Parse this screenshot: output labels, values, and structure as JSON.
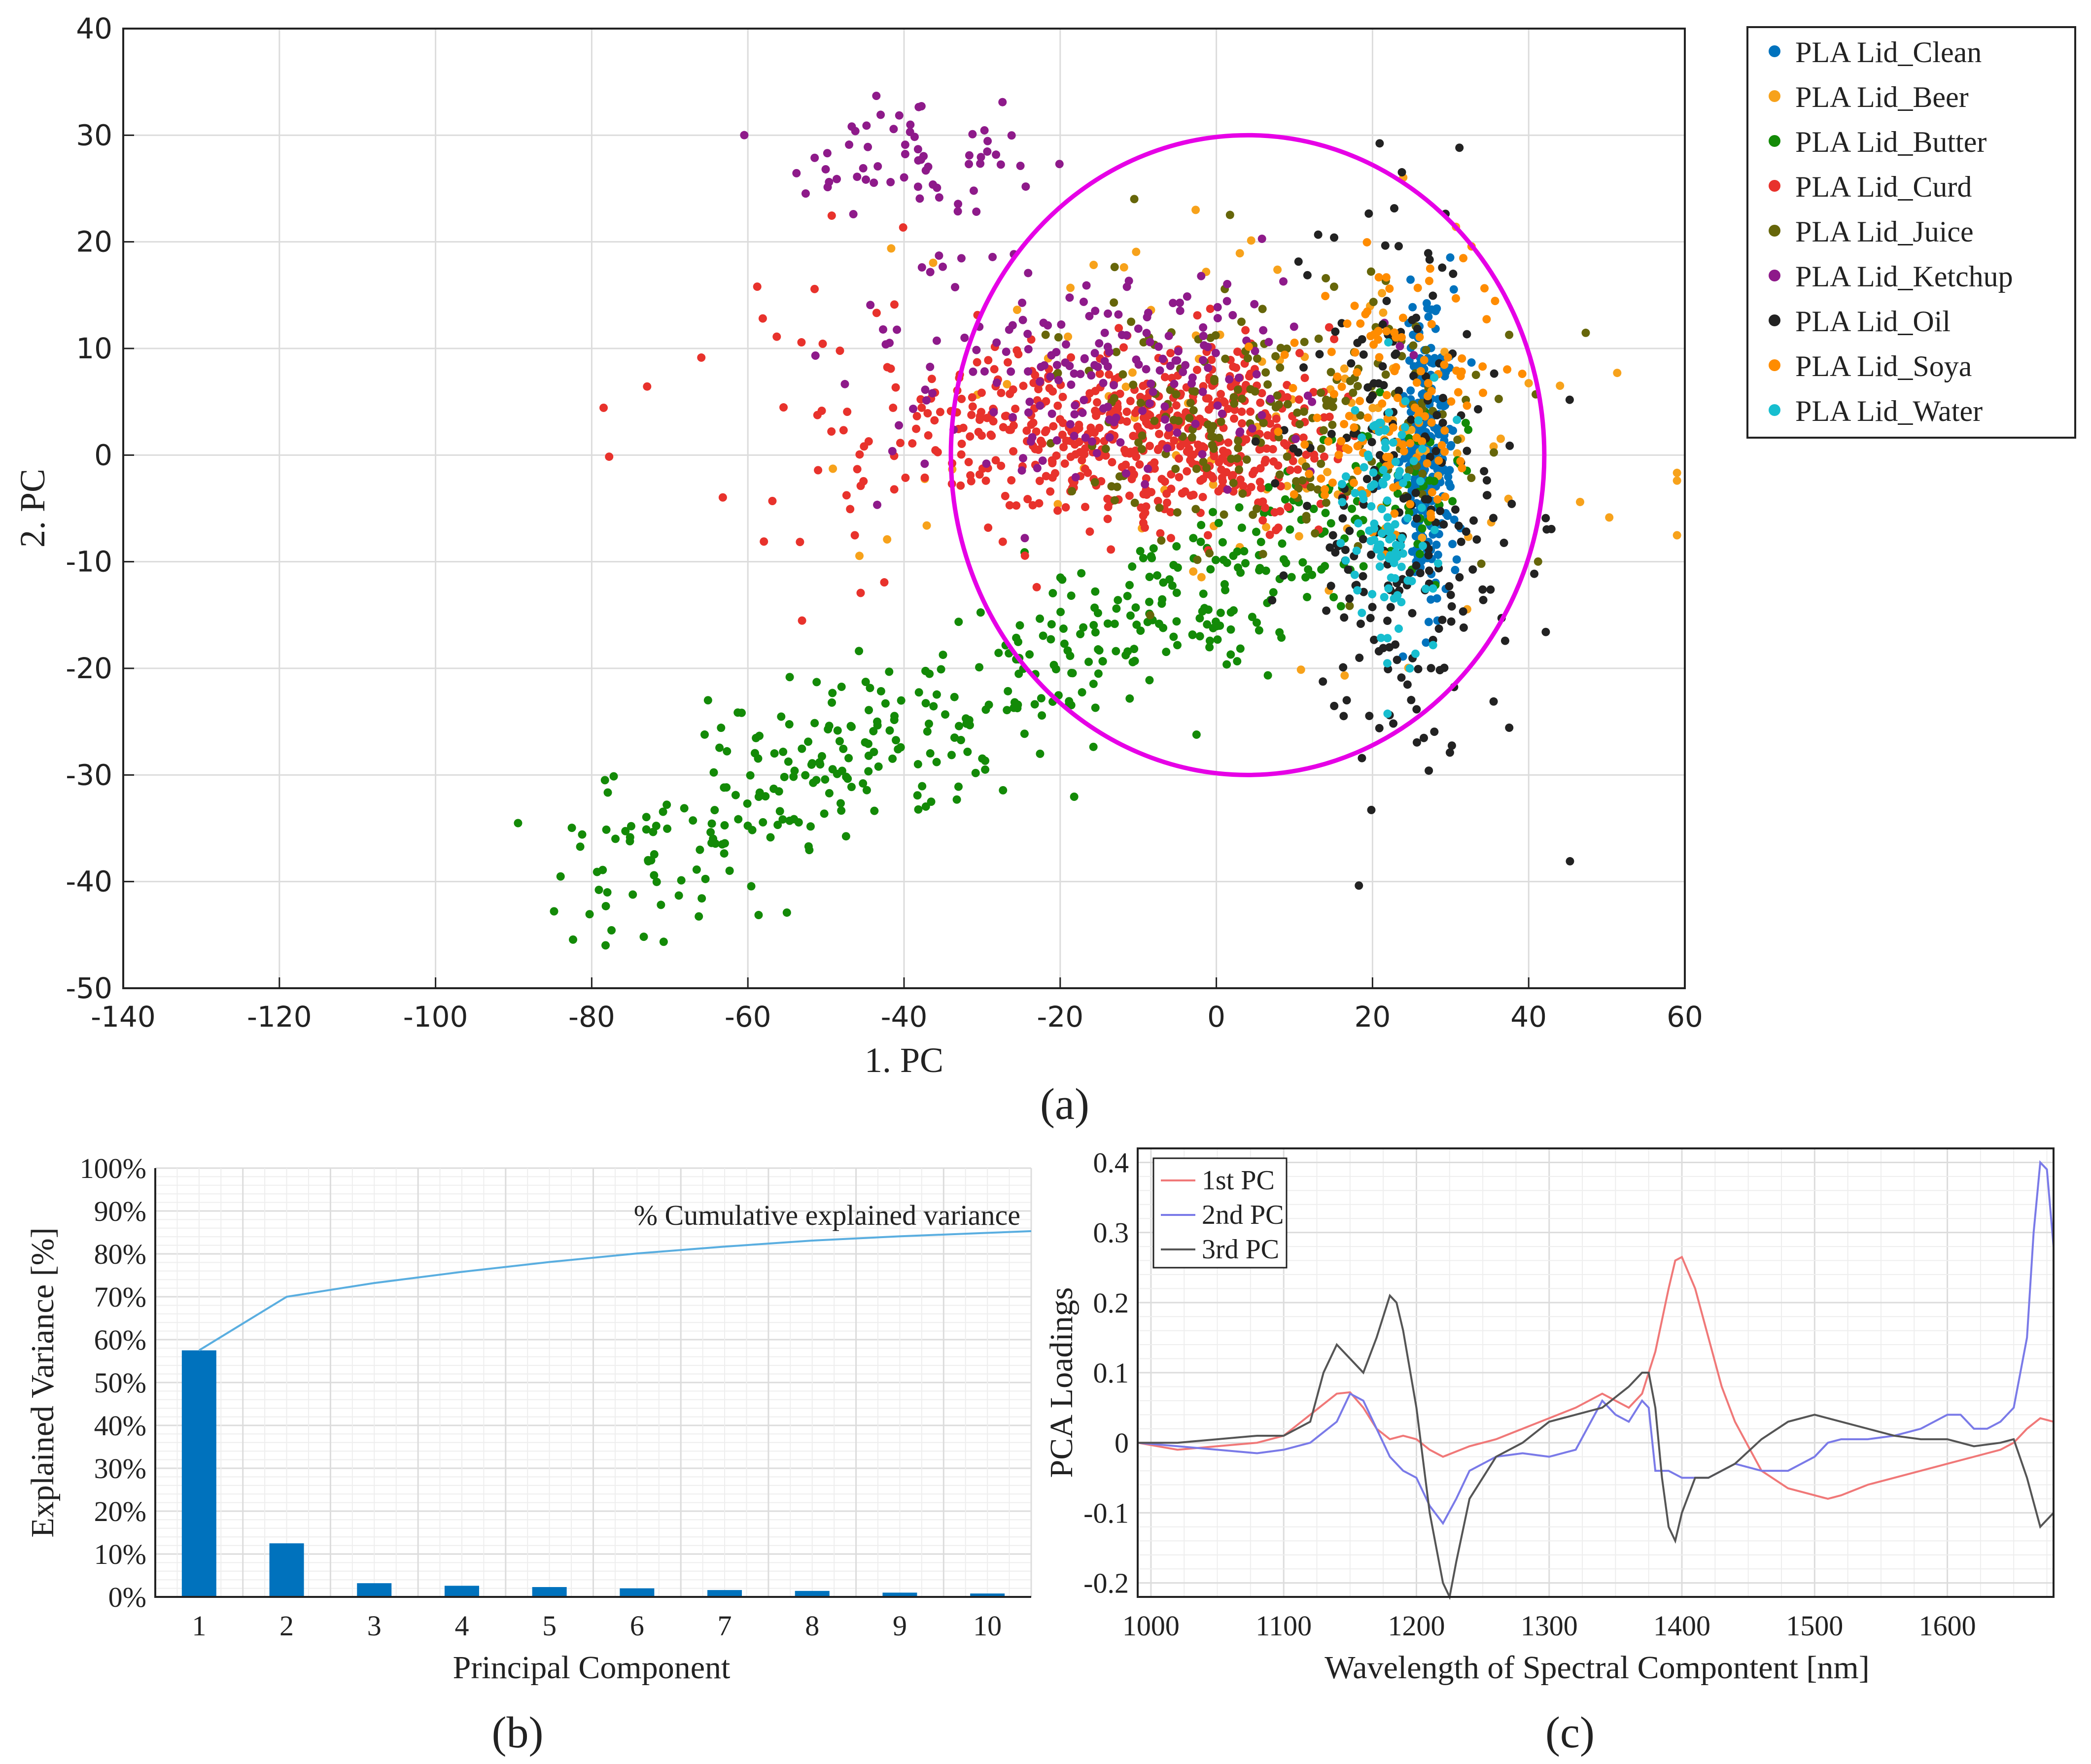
{
  "chart_data": [
    {
      "panel_label": "(a)",
      "type": "scatter",
      "title": "",
      "xlabel": "1. PC",
      "ylabel": "2. PC",
      "xlim": [
        -140,
        60
      ],
      "ylim": [
        -50,
        40
      ],
      "x_ticks": [
        -140,
        -120,
        -100,
        -80,
        -60,
        -40,
        -20,
        0,
        20,
        40,
        60
      ],
      "y_ticks": [
        -50,
        -40,
        -30,
        -20,
        -10,
        0,
        10,
        20,
        30,
        40
      ],
      "grid": true,
      "legend_position": "outside-top-right",
      "annotation_ellipse": {
        "center": [
          4,
          0
        ],
        "radius_x": 38,
        "radius_y": 30,
        "color": "#e600e6"
      },
      "series": [
        {
          "name": "PLA Lid_Clean",
          "color": "#0072bd",
          "cluster": {
            "x_mean": 27,
            "y_mean": 0,
            "x_sd": 1.6,
            "y_sd": 7,
            "count": 260
          }
        },
        {
          "name": "PLA Lid_Beer",
          "color": "#f7a21b",
          "cluster": {
            "x_mean": 5,
            "y_mean": 2,
            "x_sd": 22,
            "y_sd": 10,
            "count": 110
          }
        },
        {
          "name": "PLA Lid_Butter",
          "color": "#138a07",
          "cluster": {
            "x_mean": -5,
            "y_mean": -15,
            "x_sd": 25,
            "y_sd": 10,
            "count": 480
          }
        },
        {
          "name": "PLA Lid_Curd",
          "color": "#e8322c",
          "cluster": {
            "x_mean": -25,
            "y_mean": 2,
            "x_sd": 22,
            "y_sd": 5,
            "count": 620
          }
        },
        {
          "name": "PLA Lid_Juice",
          "color": "#66660a",
          "cluster": {
            "x_mean": 5,
            "y_mean": 4,
            "x_sd": 15,
            "y_sd": 6,
            "count": 220
          }
        },
        {
          "name": "PLA Lid_Ketchup",
          "color": "#8e1a8a",
          "cluster": {
            "x_mean": -15,
            "y_mean": 10,
            "x_sd": 15,
            "y_sd": 8,
            "count": 260
          }
        },
        {
          "name": "PLA Lid_Oil",
          "color": "#222222",
          "cluster": {
            "x_mean": 24,
            "y_mean": -5,
            "x_sd": 7,
            "y_sd": 14,
            "count": 240
          }
        },
        {
          "name": "PLA Lid_Soya",
          "color": "#ff8c00",
          "cluster": {
            "x_mean": 22,
            "y_mean": 5,
            "x_sd": 6,
            "y_sd": 6,
            "count": 140
          }
        },
        {
          "name": "PLA Lid_Water",
          "color": "#17becf",
          "cluster": {
            "x_mean": 22,
            "y_mean": -5,
            "x_sd": 3,
            "y_sd": 7,
            "count": 110
          }
        }
      ]
    },
    {
      "panel_label": "(b)",
      "type": "bar",
      "title": "",
      "xlabel": "Principal Component",
      "ylabel": "Explained Variance [%]",
      "categories": [
        "1",
        "2",
        "3",
        "4",
        "5",
        "6",
        "7",
        "8",
        "9",
        "10"
      ],
      "values": [
        57.5,
        12.5,
        3.2,
        2.6,
        2.3,
        2.0,
        1.6,
        1.4,
        1.0,
        0.8
      ],
      "cumulative": [
        57.5,
        70.0,
        73.2,
        75.8,
        78.1,
        80.1,
        81.7,
        83.1,
        84.1,
        84.9
      ],
      "cumulative_label": "% Cumulative explained variance",
      "ylim": [
        0,
        100
      ],
      "y_ticks": [
        "0%",
        "10%",
        "20%",
        "30%",
        "40%",
        "50%",
        "60%",
        "70%",
        "80%",
        "90%",
        "100%"
      ],
      "bar_color": "#0072bd",
      "line_color": "#5aaee0",
      "grid": true
    },
    {
      "panel_label": "(c)",
      "type": "line",
      "title": "",
      "xlabel": "Wavelength of Spectral Compontent [nm]",
      "ylabel": "PCA Loadings",
      "xlim": [
        990,
        1680
      ],
      "ylim": [
        -0.22,
        0.42
      ],
      "x_ticks": [
        1000,
        1100,
        1200,
        1300,
        1400,
        1500,
        1600
      ],
      "y_ticks": [
        -0.2,
        -0.1,
        0,
        0.1,
        0.2,
        0.3,
        0.4
      ],
      "y_tick_labels": [
        "-0.2",
        "-0.1",
        "0",
        "0.1",
        "0.2",
        "0.3",
        "0.4"
      ],
      "legend_position": "top-left",
      "grid": true,
      "series": [
        {
          "name": "1st PC",
          "color": "#f07878",
          "x": [
            990,
            1020,
            1050,
            1080,
            1100,
            1120,
            1140,
            1150,
            1160,
            1170,
            1180,
            1190,
            1200,
            1210,
            1220,
            1240,
            1260,
            1280,
            1300,
            1320,
            1340,
            1350,
            1360,
            1370,
            1380,
            1390,
            1395,
            1400,
            1410,
            1420,
            1430,
            1440,
            1460,
            1480,
            1500,
            1510,
            1520,
            1540,
            1560,
            1580,
            1600,
            1620,
            1640,
            1650,
            1660,
            1670,
            1680
          ],
          "y": [
            0,
            -0.01,
            -0.005,
            0,
            0.01,
            0.04,
            0.07,
            0.072,
            0.05,
            0.02,
            0.005,
            0.01,
            0.005,
            -0.01,
            -0.02,
            -0.005,
            0.005,
            0.02,
            0.035,
            0.05,
            0.07,
            0.06,
            0.05,
            0.07,
            0.13,
            0.22,
            0.26,
            0.265,
            0.22,
            0.15,
            0.08,
            0.03,
            -0.04,
            -0.065,
            -0.075,
            -0.08,
            -0.075,
            -0.06,
            -0.05,
            -0.04,
            -0.03,
            -0.02,
            -0.01,
            0,
            0.02,
            0.035,
            0.03
          ]
        },
        {
          "name": "2nd PC",
          "color": "#7a7ae8",
          "x": [
            990,
            1020,
            1050,
            1080,
            1100,
            1120,
            1140,
            1150,
            1160,
            1170,
            1180,
            1190,
            1200,
            1210,
            1220,
            1230,
            1240,
            1260,
            1280,
            1300,
            1320,
            1340,
            1350,
            1360,
            1370,
            1375,
            1380,
            1390,
            1400,
            1420,
            1440,
            1460,
            1480,
            1500,
            1510,
            1520,
            1540,
            1560,
            1580,
            1600,
            1610,
            1620,
            1630,
            1640,
            1650,
            1660,
            1665,
            1670,
            1675,
            1680
          ],
          "y": [
            0,
            -0.005,
            -0.01,
            -0.015,
            -0.01,
            0,
            0.03,
            0.07,
            0.06,
            0.02,
            -0.02,
            -0.04,
            -0.05,
            -0.09,
            -0.115,
            -0.08,
            -0.04,
            -0.02,
            -0.015,
            -0.02,
            -0.01,
            0.06,
            0.04,
            0.03,
            0.06,
            0.05,
            -0.04,
            -0.04,
            -0.05,
            -0.05,
            -0.03,
            -0.04,
            -0.04,
            -0.02,
            0,
            0.005,
            0.005,
            0.01,
            0.02,
            0.04,
            0.04,
            0.02,
            0.02,
            0.03,
            0.05,
            0.15,
            0.3,
            0.4,
            0.39,
            0.28
          ]
        },
        {
          "name": "3rd PC",
          "color": "#555555",
          "x": [
            990,
            1020,
            1050,
            1080,
            1100,
            1120,
            1130,
            1140,
            1150,
            1160,
            1170,
            1180,
            1185,
            1190,
            1200,
            1210,
            1220,
            1225,
            1230,
            1240,
            1260,
            1280,
            1300,
            1320,
            1340,
            1360,
            1370,
            1375,
            1380,
            1385,
            1390,
            1395,
            1400,
            1410,
            1420,
            1440,
            1460,
            1480,
            1500,
            1520,
            1540,
            1560,
            1580,
            1600,
            1620,
            1640,
            1650,
            1660,
            1670,
            1680
          ],
          "y": [
            0,
            0,
            0.005,
            0.01,
            0.01,
            0.03,
            0.1,
            0.14,
            0.12,
            0.1,
            0.15,
            0.21,
            0.2,
            0.16,
            0.05,
            -0.1,
            -0.2,
            -0.22,
            -0.17,
            -0.08,
            -0.02,
            0,
            0.03,
            0.04,
            0.05,
            0.08,
            0.1,
            0.1,
            0.05,
            -0.05,
            -0.12,
            -0.14,
            -0.1,
            -0.05,
            -0.05,
            -0.03,
            0.005,
            0.03,
            0.04,
            0.03,
            0.02,
            0.01,
            0.005,
            0.005,
            -0.005,
            0,
            0.005,
            -0.05,
            -0.12,
            -0.1
          ]
        }
      ]
    }
  ]
}
